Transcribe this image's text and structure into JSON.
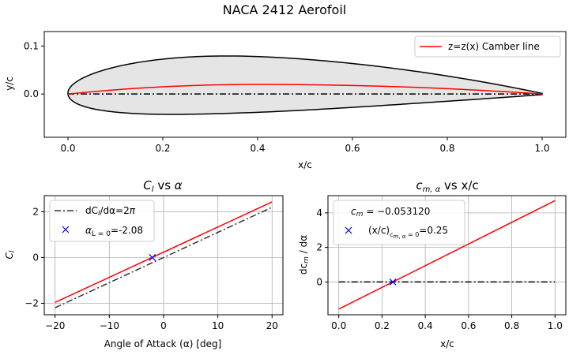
{
  "figure": {
    "suptitle": "NACA 2412 Aerofoil"
  },
  "chart_data": [
    {
      "id": "aerofoil",
      "type": "line",
      "title": "",
      "xlabel": "x/c",
      "ylabel": "y/c",
      "xlim": [
        -0.05,
        1.05
      ],
      "ylim": [
        -0.09,
        0.13
      ],
      "xticks": [
        0.0,
        0.2,
        0.4,
        0.6,
        0.8,
        1.0
      ],
      "xtick_labels": [
        "0.0",
        "0.2",
        "0.4",
        "0.6",
        "0.8",
        "1.0"
      ],
      "yticks": [
        0.1,
        0.0
      ],
      "ytick_labels": [
        "0.1",
        "0.0"
      ],
      "grid": false,
      "legend_position": "top-right",
      "airfoil": {
        "max_camber": 0.02,
        "camber_position": 0.4,
        "thickness": 0.12,
        "fill_color": "#e5e5e5",
        "outline_color": "#000000"
      },
      "series": [
        {
          "name": "z=z(x) Camber line",
          "color": "#ff0000",
          "style": "solid",
          "x": [
            0.0,
            0.1,
            0.2,
            0.3,
            0.4,
            0.5,
            0.6,
            0.7,
            0.8,
            0.9,
            1.0
          ],
          "y": [
            0.0,
            0.0088,
            0.015,
            0.0188,
            0.02,
            0.0194,
            0.0178,
            0.015,
            0.0111,
            0.0061,
            0.0
          ]
        },
        {
          "name": "",
          "color": "#000000",
          "style": "dashdot",
          "x": [
            0.0,
            1.0
          ],
          "y": [
            0.0,
            0.0
          ]
        }
      ]
    },
    {
      "id": "cl",
      "type": "line",
      "title": "C_l vs α",
      "xlabel": "Angle of Attack (α) [deg]",
      "ylabel": "C_l",
      "xlim": [
        -22,
        22
      ],
      "ylim": [
        -2.5,
        2.7
      ],
      "xticks": [
        -20,
        -10,
        0,
        10,
        20
      ],
      "xtick_labels": [
        "−20",
        "−10",
        "0",
        "10",
        "20"
      ],
      "yticks": [
        -2,
        0,
        2
      ],
      "ytick_labels": [
        "−2",
        "0",
        "2"
      ],
      "grid": true,
      "legend_position": "top-left",
      "series": [
        {
          "name": "",
          "color": "#ff0000",
          "style": "solid",
          "x": [
            -20,
            20
          ],
          "y": [
            -1.9611,
            2.4254
          ]
        },
        {
          "name": "dC_l/dα=2π",
          "color": "#333333",
          "style": "dashdot",
          "x": [
            -20,
            20
          ],
          "y": [
            -2.1932,
            2.1932
          ]
        },
        {
          "name": "α_L=0=-2.08",
          "color": "#0000ff",
          "style": "marker-x",
          "x": [
            -2.08
          ],
          "y": [
            0.0
          ]
        }
      ]
    },
    {
      "id": "cm",
      "type": "line",
      "title": "c_m,α vs x/c",
      "xlabel": "x/c",
      "ylabel": "dc_m / dα",
      "xlim": [
        -0.05,
        1.05
      ],
      "ylim": [
        -1.9,
        5.0
      ],
      "xticks": [
        0.0,
        0.2,
        0.4,
        0.6,
        0.8,
        1.0
      ],
      "xtick_labels": [
        "0.0",
        "0.2",
        "0.4",
        "0.6",
        "0.8",
        "1.0"
      ],
      "yticks": [
        0,
        2,
        4
      ],
      "ytick_labels": [
        "0",
        "2",
        "4"
      ],
      "grid": true,
      "legend_position": "top-left",
      "legend_note": "c_m = −0.053120",
      "series": [
        {
          "name": "",
          "color": "#ff0000",
          "style": "solid",
          "x": [
            0.0,
            1.0
          ],
          "y": [
            -1.5708,
            4.7124
          ]
        },
        {
          "name": "",
          "color": "#000000",
          "style": "dashdot",
          "x": [
            0.0,
            1.0
          ],
          "y": [
            0.0,
            0.0
          ]
        },
        {
          "name": "(x/c)_c_m,α=0=0.25",
          "color": "#0000ff",
          "style": "marker-x",
          "x": [
            0.25
          ],
          "y": [
            0.0
          ]
        }
      ]
    }
  ]
}
